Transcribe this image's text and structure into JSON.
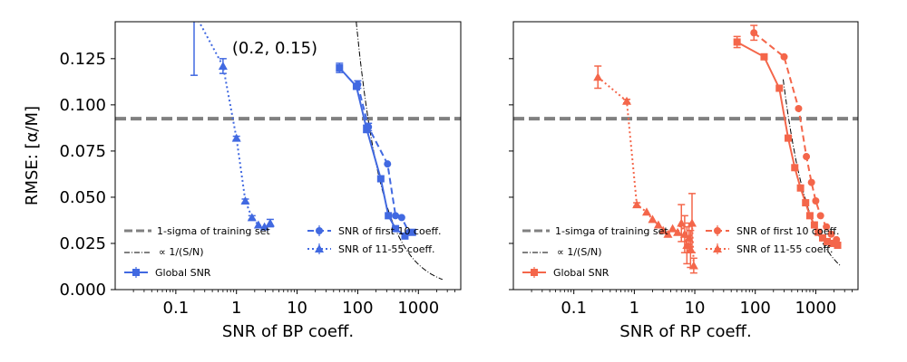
{
  "ylabel": "RMSE: [α/M]",
  "annotation": "(0.2, 0.15)",
  "chart_data": [
    {
      "type": "line",
      "xscale": "log",
      "xlabel": "SNR of BP coeff.",
      "ylabel": "RMSE: [α/M]",
      "xlim": [
        0.01,
        5000
      ],
      "ylim": [
        0.0,
        0.145
      ],
      "xticks": [
        0.1,
        1,
        10,
        100,
        1000
      ],
      "xtick_labels": [
        "0.1",
        "1",
        "10",
        "100",
        "1000"
      ],
      "yticks": [
        0.0,
        0.025,
        0.05,
        0.075,
        0.1,
        0.125
      ],
      "ytick_labels": [
        "0.000",
        "0.025",
        "0.050",
        "0.075",
        "0.100",
        "0.125"
      ],
      "color": "#4169e1",
      "reference_line": {
        "label": "1-sigma of training set",
        "y": 0.0925
      },
      "scaling_curve": {
        "label": "∝ 1/(S/N)",
        "k": 13.7,
        "x_from": 75,
        "x_to": 2500
      },
      "series": [
        {
          "name": "Global SNR",
          "marker": "square",
          "style": "solid",
          "points": [
            [
              50,
              0.12,
              0.0025
            ],
            [
              95,
              0.11,
              0
            ],
            [
              140,
              0.087,
              0.002
            ],
            [
              240,
              0.06,
              0
            ],
            [
              320,
              0.04,
              0
            ],
            [
              420,
              0.033,
              0
            ],
            [
              600,
              0.029,
              0
            ],
            [
              800,
              0.031,
              0
            ]
          ]
        },
        {
          "name": "SNR of first 10 coeff.",
          "marker": "circle",
          "style": "dashed",
          "points": [
            [
              100,
              0.111,
              0.002
            ],
            [
              150,
              0.088,
              0.002
            ],
            [
              310,
              0.068,
              0
            ],
            [
              420,
              0.04,
              0
            ],
            [
              530,
              0.039,
              0
            ],
            [
              700,
              0.031,
              0
            ]
          ]
        },
        {
          "name": "SNR of 11-55 coeff.",
          "marker": "triangle",
          "style": "dotted",
          "points": [
            [
              0.2,
              0.15,
              0.034
            ],
            [
              0.6,
              0.121,
              0.004
            ],
            [
              1.0,
              0.082,
              0.001
            ],
            [
              1.4,
              0.048,
              0.001
            ],
            [
              1.8,
              0.039,
              0.001
            ],
            [
              2.3,
              0.035,
              0
            ],
            [
              2.9,
              0.034,
              0
            ],
            [
              3.6,
              0.036,
              0.002
            ]
          ]
        }
      ],
      "legend": {
        "placement": "lower-left"
      }
    },
    {
      "type": "line",
      "xscale": "log",
      "xlabel": "SNR of RP coeff.",
      "xlim": [
        0.01,
        5000
      ],
      "ylim": [
        0.0,
        0.145
      ],
      "xticks": [
        0.1,
        1,
        10,
        100,
        1000
      ],
      "xtick_labels": [
        "0.1",
        "1",
        "10",
        "100",
        "1000"
      ],
      "color": "#f4664a",
      "reference_line": {
        "label": "1-simga of training set",
        "y": 0.0925
      },
      "scaling_curve": {
        "label": "∝ 1/(S/N)",
        "k": 33,
        "x_from": 290,
        "x_to": 2600
      },
      "series": [
        {
          "name": "Global SNR",
          "marker": "square",
          "style": "solid",
          "points": [
            [
              50,
              0.134,
              0.003
            ],
            [
              140,
              0.126,
              0
            ],
            [
              250,
              0.109,
              0
            ],
            [
              350,
              0.082,
              0
            ],
            [
              450,
              0.066,
              0
            ],
            [
              560,
              0.055,
              0
            ],
            [
              680,
              0.047,
              0
            ],
            [
              800,
              0.04,
              0
            ],
            [
              950,
              0.035,
              0
            ],
            [
              1100,
              0.031,
              0
            ],
            [
              1300,
              0.028,
              0
            ],
            [
              1550,
              0.026,
              0
            ],
            [
              1850,
              0.025,
              0
            ],
            [
              2300,
              0.024,
              0
            ]
          ]
        },
        {
          "name": "SNR of first 10 coeff.",
          "marker": "circle",
          "style": "dashed",
          "points": [
            [
              95,
              0.139,
              0.004
            ],
            [
              300,
              0.126,
              0
            ],
            [
              520,
              0.098,
              0
            ],
            [
              700,
              0.072,
              0
            ],
            [
              850,
              0.058,
              0
            ],
            [
              1000,
              0.048,
              0
            ],
            [
              1200,
              0.04,
              0
            ],
            [
              1500,
              0.034,
              0
            ],
            [
              1800,
              0.03,
              0
            ],
            [
              2200,
              0.027,
              0
            ]
          ]
        },
        {
          "name": "SNR of 11-55 coeff.",
          "marker": "triangle",
          "style": "dotted",
          "points": [
            [
              0.25,
              0.115,
              0.006
            ],
            [
              0.75,
              0.102,
              0.001
            ],
            [
              1.1,
              0.046,
              0.001
            ],
            [
              1.6,
              0.042,
              0
            ],
            [
              2.0,
              0.038,
              0
            ],
            [
              2.5,
              0.035,
              0
            ],
            [
              3.0,
              0.032,
              0
            ],
            [
              3.6,
              0.03,
              0
            ],
            [
              4.3,
              0.033,
              0
            ],
            [
              5.2,
              0.031,
              0
            ],
            [
              6.0,
              0.036,
              0.01
            ],
            [
              6.8,
              0.03,
              0.01
            ],
            [
              7.4,
              0.024,
              0.01
            ],
            [
              8.0,
              0.028,
              0.008
            ],
            [
              8.5,
              0.022,
              0.01
            ],
            [
              9.0,
              0.036,
              0.016
            ],
            [
              9.6,
              0.013,
              0.004
            ]
          ]
        }
      ],
      "legend": {
        "placement": "lower-left"
      }
    }
  ]
}
